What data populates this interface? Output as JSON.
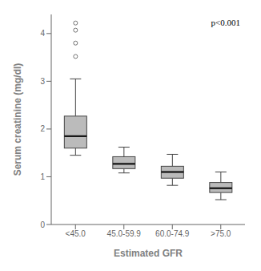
{
  "chart_data": {
    "type": "box",
    "xlabel": "Estimated GFR",
    "ylabel": "Serum creatinine (mg/dl)",
    "annotation": "p<0.001",
    "categories": [
      "<45.0",
      "45.0-59.9",
      "60.0-74.9",
      ">75.0"
    ],
    "boxes": [
      {
        "q1": 1.6,
        "median": 1.85,
        "q3": 2.27,
        "whislo": 1.45,
        "whishi": 3.05,
        "fliers": [
          3.52,
          3.8,
          4.07,
          4.22
        ]
      },
      {
        "q1": 1.17,
        "median": 1.27,
        "q3": 1.42,
        "whislo": 1.08,
        "whishi": 1.62,
        "fliers": []
      },
      {
        "q1": 0.97,
        "median": 1.1,
        "q3": 1.22,
        "whislo": 0.82,
        "whishi": 1.47,
        "fliers": []
      },
      {
        "q1": 0.67,
        "median": 0.76,
        "q3": 0.88,
        "whislo": 0.52,
        "whishi": 1.1,
        "fliers": []
      }
    ],
    "ylim": [
      0,
      4.4
    ],
    "yticks": [
      0,
      1,
      2,
      3,
      4
    ],
    "color": "#bbbbbb"
  }
}
